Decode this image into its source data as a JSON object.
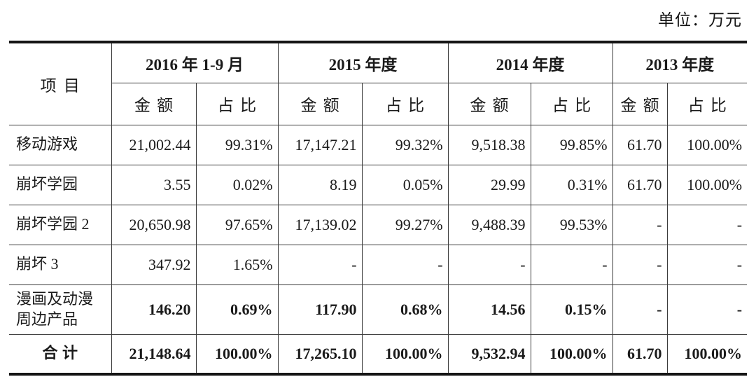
{
  "unit_label": "单位：万元",
  "table": {
    "item_header": "项目",
    "groups": [
      {
        "label": "2016 年 1-9 月"
      },
      {
        "label": "2015 年度"
      },
      {
        "label": "2014 年度"
      },
      {
        "label": "2013 年度"
      }
    ],
    "sub_headers": {
      "amount": "金额",
      "ratio": "占比"
    },
    "rows": [
      {
        "label": "移动游戏",
        "values_bold": false,
        "total": false,
        "values": [
          "21,002.44",
          "99.31%",
          "17,147.21",
          "99.32%",
          "9,518.38",
          "99.85%",
          "61.70",
          "100.00%"
        ]
      },
      {
        "label": "崩坏学园",
        "values_bold": false,
        "total": false,
        "values": [
          "3.55",
          "0.02%",
          "8.19",
          "0.05%",
          "29.99",
          "0.31%",
          "61.70",
          "100.00%"
        ]
      },
      {
        "label": "崩坏学园 2",
        "values_bold": false,
        "total": false,
        "values": [
          "20,650.98",
          "97.65%",
          "17,139.02",
          "99.27%",
          "9,488.39",
          "99.53%",
          "-",
          "-"
        ]
      },
      {
        "label": "崩坏 3",
        "values_bold": false,
        "total": false,
        "values": [
          "347.92",
          "1.65%",
          "-",
          "-",
          "-",
          "-",
          "-",
          "-"
        ]
      },
      {
        "label": "漫画及动漫周边产品",
        "values_bold": true,
        "total": false,
        "tall": true,
        "values": [
          "146.20",
          "0.69%",
          "117.90",
          "0.68%",
          "14.56",
          "0.15%",
          "-",
          "-"
        ]
      },
      {
        "label": "合计",
        "values_bold": true,
        "total": true,
        "values": [
          "21,148.64",
          "100.00%",
          "17,265.10",
          "100.00%",
          "9,532.94",
          "100.00%",
          "61.70",
          "100.00%"
        ]
      }
    ]
  }
}
